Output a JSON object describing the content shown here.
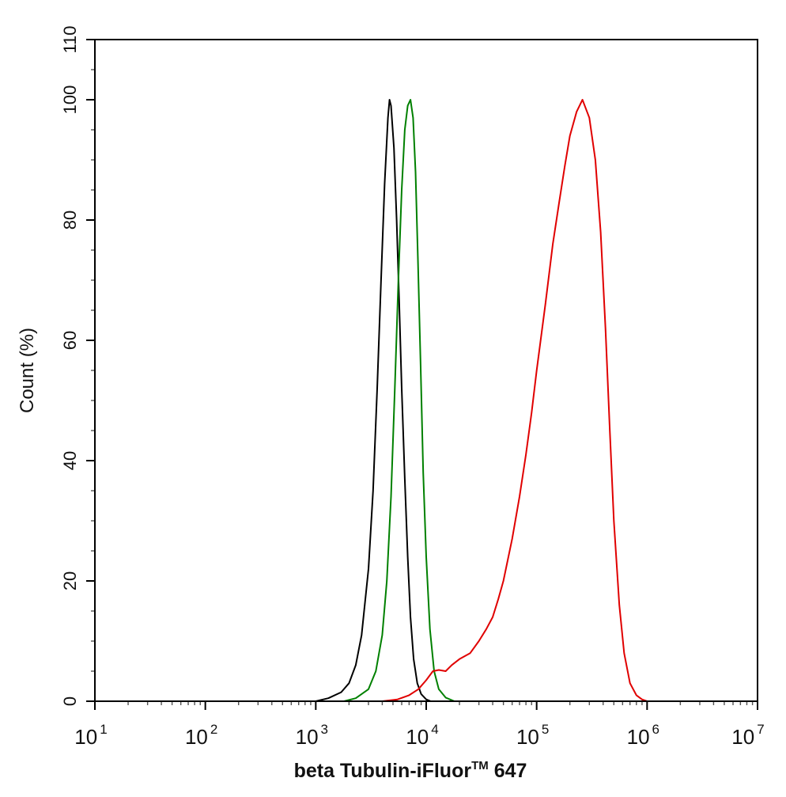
{
  "chart_data": {
    "type": "line",
    "title": "",
    "xlabel": "beta Tubulin-iFluor",
    "xlabel_superscript": "TM",
    "xlabel_suffix": " 647",
    "ylabel": "Count  (%)",
    "xscale": "log",
    "xlim": [
      10,
      10000000
    ],
    "ylim": [
      0,
      110
    ],
    "grid": false,
    "legend": "none",
    "xticks": [
      {
        "base": "10",
        "exp": "1",
        "value": 10
      },
      {
        "base": "10",
        "exp": "2",
        "value": 100
      },
      {
        "base": "10",
        "exp": "3",
        "value": 1000
      },
      {
        "base": "10",
        "exp": "4",
        "value": 10000
      },
      {
        "base": "10",
        "exp": "5",
        "value": 100000
      },
      {
        "base": "10",
        "exp": "6",
        "value": 1000000
      },
      {
        "base": "10",
        "exp": "7",
        "value": 10000000
      }
    ],
    "yticks": [
      {
        "label": "0",
        "value": 0
      },
      {
        "label": "20",
        "value": 20
      },
      {
        "label": "40",
        "value": 40
      },
      {
        "label": "60",
        "value": 60
      },
      {
        "label": "80",
        "value": 80
      },
      {
        "label": "100",
        "value": 100
      },
      {
        "label": "110",
        "value": 110
      }
    ],
    "series": [
      {
        "color": "#000000",
        "points": [
          [
            1000,
            0
          ],
          [
            1300,
            0.5
          ],
          [
            1700,
            1.5
          ],
          [
            2000,
            3
          ],
          [
            2300,
            6
          ],
          [
            2600,
            11
          ],
          [
            3000,
            22
          ],
          [
            3300,
            35
          ],
          [
            3600,
            52
          ],
          [
            3900,
            70
          ],
          [
            4200,
            86
          ],
          [
            4500,
            97
          ],
          [
            4650,
            100
          ],
          [
            4800,
            99
          ],
          [
            5100,
            92
          ],
          [
            5400,
            80
          ],
          [
            5700,
            66
          ],
          [
            6000,
            52
          ],
          [
            6400,
            37
          ],
          [
            6800,
            24
          ],
          [
            7200,
            14
          ],
          [
            7700,
            7
          ],
          [
            8300,
            3
          ],
          [
            9000,
            1.2
          ],
          [
            10000,
            0.3
          ],
          [
            11000,
            0
          ]
        ]
      },
      {
        "color": "#008000",
        "points": [
          [
            1800,
            0
          ],
          [
            2300,
            0.5
          ],
          [
            3000,
            2
          ],
          [
            3500,
            5
          ],
          [
            4000,
            11
          ],
          [
            4400,
            20
          ],
          [
            4800,
            34
          ],
          [
            5200,
            52
          ],
          [
            5600,
            70
          ],
          [
            6000,
            85
          ],
          [
            6400,
            95
          ],
          [
            6800,
            99
          ],
          [
            7200,
            100
          ],
          [
            7600,
            97
          ],
          [
            8000,
            88
          ],
          [
            8400,
            74
          ],
          [
            8900,
            56
          ],
          [
            9400,
            38
          ],
          [
            10000,
            24
          ],
          [
            10800,
            12
          ],
          [
            11800,
            5
          ],
          [
            13000,
            2
          ],
          [
            15000,
            0.6
          ],
          [
            18000,
            0
          ]
        ]
      },
      {
        "color": "#e00000",
        "points": [
          [
            4000,
            0
          ],
          [
            5500,
            0.3
          ],
          [
            7000,
            1
          ],
          [
            8500,
            2
          ],
          [
            10000,
            3.5
          ],
          [
            11500,
            5
          ],
          [
            13000,
            5.2
          ],
          [
            15000,
            5
          ],
          [
            17000,
            6
          ],
          [
            20000,
            7
          ],
          [
            25000,
            8
          ],
          [
            30000,
            10
          ],
          [
            35000,
            12
          ],
          [
            40000,
            14
          ],
          [
            45000,
            17
          ],
          [
            50000,
            20
          ],
          [
            60000,
            27
          ],
          [
            70000,
            34
          ],
          [
            80000,
            41
          ],
          [
            90000,
            48
          ],
          [
            100000,
            55
          ],
          [
            120000,
            66
          ],
          [
            140000,
            76
          ],
          [
            160000,
            83
          ],
          [
            180000,
            89
          ],
          [
            200000,
            94
          ],
          [
            230000,
            98
          ],
          [
            260000,
            100
          ],
          [
            300000,
            97
          ],
          [
            340000,
            90
          ],
          [
            380000,
            78
          ],
          [
            420000,
            62
          ],
          [
            460000,
            45
          ],
          [
            500000,
            30
          ],
          [
            560000,
            16
          ],
          [
            620000,
            8
          ],
          [
            700000,
            3
          ],
          [
            800000,
            1
          ],
          [
            900000,
            0.3
          ],
          [
            1000000,
            0
          ]
        ]
      }
    ]
  }
}
